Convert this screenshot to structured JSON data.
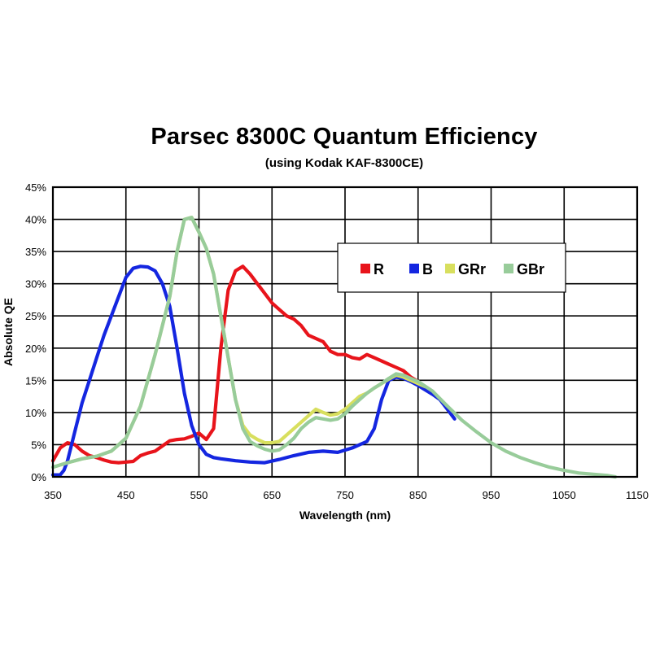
{
  "chart_data": {
    "type": "line",
    "title": "Parsec 8300C Quantum Efficiency",
    "subtitle": "(using Kodak KAF-8300CE)",
    "xlabel": "Wavelength (nm)",
    "ylabel": "Absolute QE",
    "xlim": [
      350,
      1150
    ],
    "ylim": [
      0,
      45
    ],
    "xticks": [
      350,
      450,
      550,
      650,
      750,
      850,
      950,
      1050,
      1150
    ],
    "yticks": [
      0,
      5,
      10,
      15,
      20,
      25,
      30,
      35,
      40,
      45
    ],
    "ytick_labels": [
      "0%",
      "5%",
      "10%",
      "15%",
      "20%",
      "25%",
      "30%",
      "35%",
      "40%",
      "45%"
    ],
    "grid": true,
    "legend_position": "top-right",
    "series": [
      {
        "name": "R",
        "color": "#e8141b",
        "x": [
          350,
          360,
          370,
          380,
          390,
          400,
          410,
          420,
          430,
          440,
          450,
          460,
          470,
          480,
          490,
          500,
          510,
          520,
          530,
          540,
          550,
          560,
          570,
          580,
          590,
          600,
          610,
          620,
          630,
          640,
          650,
          660,
          670,
          680,
          690,
          700,
          710,
          720,
          730,
          740,
          750,
          760,
          770,
          780,
          790,
          800,
          810,
          820,
          830,
          840,
          850
        ],
        "y": [
          2.5,
          4.5,
          5.3,
          5.0,
          4.0,
          3.3,
          3.0,
          2.6,
          2.3,
          2.2,
          2.3,
          2.4,
          3.3,
          3.7,
          4.0,
          4.8,
          5.6,
          5.8,
          5.9,
          6.3,
          6.8,
          5.8,
          7.5,
          20.0,
          29.0,
          32.0,
          32.7,
          31.5,
          30.0,
          28.5,
          27.0,
          26.0,
          25.0,
          24.5,
          23.5,
          22.0,
          21.5,
          21.0,
          19.5,
          19.0,
          19.0,
          18.5,
          18.3,
          19.0,
          18.5,
          18.0,
          17.5,
          17.0,
          16.5,
          15.5,
          14.8
        ]
      },
      {
        "name": "B",
        "color": "#1426e0",
        "x": [
          350,
          360,
          365,
          370,
          380,
          390,
          400,
          410,
          420,
          430,
          440,
          450,
          460,
          470,
          480,
          490,
          500,
          510,
          520,
          530,
          540,
          550,
          560,
          570,
          580,
          600,
          620,
          640,
          660,
          680,
          700,
          720,
          740,
          760,
          780,
          790,
          800,
          810,
          820,
          830,
          840,
          850,
          860,
          870,
          880,
          890,
          900
        ],
        "y": [
          0.3,
          0.3,
          1.0,
          2.5,
          7.0,
          11.5,
          15.0,
          18.5,
          22.0,
          25.0,
          28.0,
          31.0,
          32.4,
          32.7,
          32.6,
          32.0,
          30.0,
          26.5,
          20.0,
          13.0,
          8.0,
          5.0,
          3.5,
          3.0,
          2.8,
          2.5,
          2.3,
          2.2,
          2.7,
          3.3,
          3.8,
          4.0,
          3.8,
          4.5,
          5.5,
          7.5,
          12.0,
          15.0,
          15.5,
          15.3,
          14.8,
          14.2,
          13.5,
          12.8,
          12.0,
          10.5,
          9.0
        ]
      },
      {
        "name": "GRr",
        "color": "#d8df5e",
        "x": [
          350,
          370,
          390,
          410,
          430,
          450,
          470,
          490,
          510,
          520,
          530,
          540,
          550,
          560,
          570,
          580,
          590,
          600,
          610,
          620,
          630,
          640,
          650,
          660,
          670,
          680,
          690,
          700,
          710,
          720,
          730,
          740,
          750,
          760,
          770,
          780,
          790,
          800,
          810,
          820,
          830,
          840,
          850,
          860
        ],
        "y": [
          1.5,
          2.2,
          2.8,
          3.2,
          4.0,
          6.0,
          11.0,
          19.0,
          28.0,
          35.0,
          40.0,
          40.3,
          38.0,
          35.5,
          31.5,
          25.0,
          18.5,
          12.0,
          8.0,
          6.5,
          5.8,
          5.3,
          5.3,
          5.5,
          6.5,
          7.5,
          8.5,
          9.5,
          10.5,
          10.0,
          9.6,
          9.8,
          10.5,
          11.5,
          12.5,
          13.0,
          13.8,
          14.5,
          15.2,
          15.8,
          15.5,
          15.0,
          14.5,
          14.0
        ]
      },
      {
        "name": "GBr",
        "color": "#98cc9a",
        "x": [
          350,
          370,
          390,
          410,
          430,
          450,
          470,
          490,
          510,
          520,
          530,
          540,
          550,
          560,
          570,
          580,
          590,
          600,
          610,
          620,
          630,
          640,
          650,
          660,
          670,
          680,
          690,
          700,
          710,
          720,
          730,
          740,
          750,
          760,
          770,
          780,
          790,
          800,
          810,
          820,
          830,
          840,
          850,
          870,
          890,
          910,
          930,
          950,
          970,
          990,
          1010,
          1030,
          1050,
          1070,
          1090,
          1110,
          1120
        ],
        "y": [
          1.5,
          2.2,
          2.8,
          3.2,
          4.0,
          6.0,
          11.0,
          19.0,
          28.0,
          35.0,
          40.0,
          40.3,
          38.0,
          35.5,
          31.5,
          25.0,
          18.5,
          12.0,
          7.5,
          5.5,
          4.8,
          4.3,
          4.0,
          4.2,
          5.0,
          6.0,
          7.5,
          8.5,
          9.2,
          9.0,
          8.8,
          9.0,
          9.8,
          11.0,
          12.0,
          13.0,
          13.8,
          14.5,
          15.3,
          16.0,
          15.8,
          15.3,
          14.8,
          13.3,
          11.0,
          8.8,
          7.0,
          5.3,
          4.0,
          3.0,
          2.2,
          1.5,
          1.0,
          0.6,
          0.4,
          0.2,
          0.0
        ]
      }
    ]
  }
}
